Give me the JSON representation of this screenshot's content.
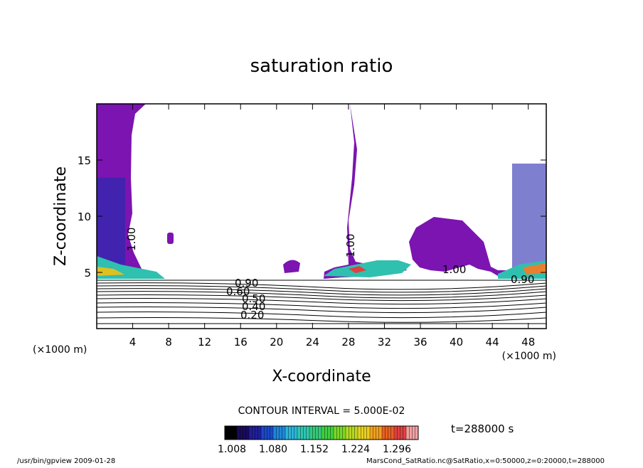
{
  "chart_data": {
    "type": "heatmap",
    "title": "saturation ratio",
    "xlabel": "X-coordinate",
    "ylabel": "Z-coordinate",
    "x_unit": "(×1000 m)",
    "y_unit": "(×1000 m)",
    "xlim": [
      0,
      50
    ],
    "ylim": [
      0,
      20
    ],
    "x_ticks": [
      "4",
      "8",
      "12",
      "16",
      "20",
      "24",
      "28",
      "32",
      "36",
      "40",
      "44",
      "48"
    ],
    "y_ticks": [
      "5",
      "10",
      "15"
    ],
    "contour_interval_text": "CONTOUR INTERVAL = 5.000E-02",
    "contour_labels": [
      "1.00",
      "1.00",
      "1.00",
      "0.90",
      "0.60",
      "0.50",
      "0.40",
      "0.20",
      "0.90"
    ],
    "colorbar": {
      "ticks": [
        "1.008",
        "1.080",
        "1.152",
        "1.224",
        "1.296"
      ],
      "colors": [
        "#000000",
        "#1a0a5a",
        "#1f1f9a",
        "#1a49c8",
        "#1f86d8",
        "#2bb4d8",
        "#2ec6b0",
        "#35c87a",
        "#3fcf40",
        "#78d828",
        "#b8d820",
        "#e6d020",
        "#f0a020",
        "#e86020",
        "#e04040",
        "#f0a0a0"
      ]
    },
    "time_text": "t=288000 s",
    "grid": false,
    "legend": "none"
  },
  "footer": {
    "left": "/usr/bin/gpview   2009-01-28",
    "right": "MarsCond_SatRatio.nc@SatRatio,x=0:50000,z=0:20000,t=288000"
  }
}
